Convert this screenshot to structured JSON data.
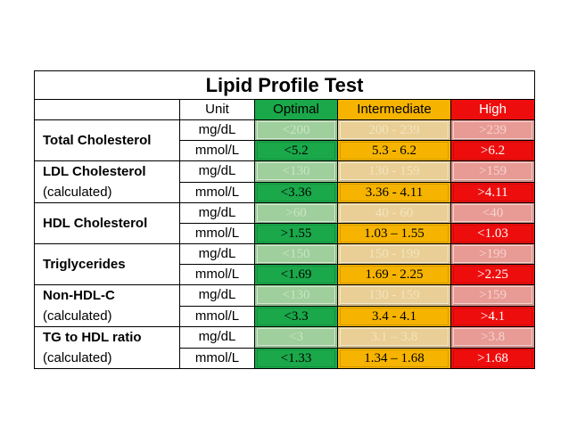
{
  "title": "Lipid Profile Test",
  "header": {
    "unit": "Unit",
    "optimal": "Optimal",
    "intermediate": "Intermediate",
    "high": "High"
  },
  "colors": {
    "optimal": "#1aa84a",
    "intermediate": "#f6b400",
    "high": "#ee0d0d"
  },
  "rows": [
    {
      "parameter": "Total Cholesterol",
      "subtitle": "",
      "mgdl": {
        "unit": "mg/dL",
        "optimal": "<200",
        "intermediate": "200 - 239",
        "high": ">239"
      },
      "mmol": {
        "unit": "mmol/L",
        "optimal": "<5.2",
        "intermediate": "5.3 - 6.2",
        "high": ">6.2"
      }
    },
    {
      "parameter": "LDL Cholesterol",
      "subtitle": "(calculated)",
      "mgdl": {
        "unit": "mg/dL",
        "optimal": "<130",
        "intermediate": "130 - 159",
        "high": ">159"
      },
      "mmol": {
        "unit": "mmol/L",
        "optimal": "<3.36",
        "intermediate": "3.36 - 4.11",
        "high": ">4.11"
      }
    },
    {
      "parameter": "HDL Cholesterol",
      "subtitle": "",
      "mgdl": {
        "unit": "mg/dL",
        "optimal": ">60",
        "intermediate": "40 - 60",
        "high": "<40"
      },
      "mmol": {
        "unit": "mmol/L",
        "optimal": ">1.55",
        "intermediate": "1.03 – 1.55",
        "high": "<1.03"
      }
    },
    {
      "parameter": "Triglycerides",
      "subtitle": "",
      "mgdl": {
        "unit": "mg/dL",
        "optimal": "<150",
        "intermediate": "150 - 199",
        "high": ">199"
      },
      "mmol": {
        "unit": "mmol/L",
        "optimal": "<1.69",
        "intermediate": "1.69 - 2.25",
        "high": ">2.25"
      }
    },
    {
      "parameter": "Non-HDL-C",
      "subtitle": "(calculated)",
      "mgdl": {
        "unit": "mg/dL",
        "optimal": "<130",
        "intermediate": "130 - 159",
        "high": ">159"
      },
      "mmol": {
        "unit": "mmol/L",
        "optimal": "<3.3",
        "intermediate": "3.4 - 4.1",
        "high": ">4.1"
      }
    },
    {
      "parameter": "TG to HDL ratio",
      "subtitle": "(calculated)",
      "mgdl": {
        "unit": "mg/dL",
        "optimal": "<3",
        "intermediate": "3.1 – 3.8",
        "high": ">3.8"
      },
      "mmol": {
        "unit": "mmol/L",
        "optimal": "<1.33",
        "intermediate": "1.34 – 1.68",
        "high": ">1.68"
      }
    }
  ]
}
